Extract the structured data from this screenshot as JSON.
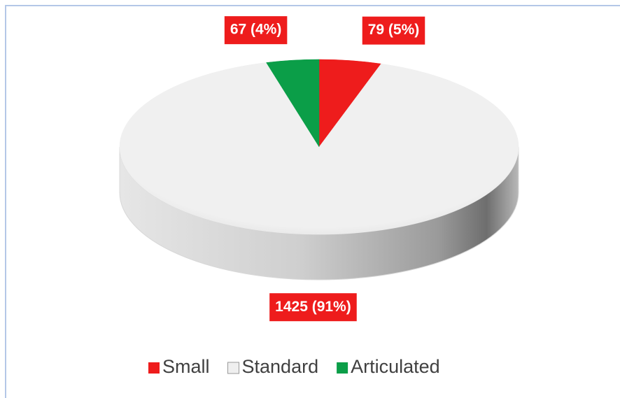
{
  "chart_data": {
    "type": "pie",
    "categories": [
      "Small",
      "Standard",
      "Articulated"
    ],
    "values": [
      79,
      1425,
      67
    ],
    "value_labels": [
      "79 (5%)",
      "1425 (91%)",
      "67 (4%)"
    ],
    "colors": [
      "#ee1c1c",
      "#efefef",
      "#0b9e48"
    ],
    "label_color": "#ee1c1c",
    "legend": "bottom"
  }
}
